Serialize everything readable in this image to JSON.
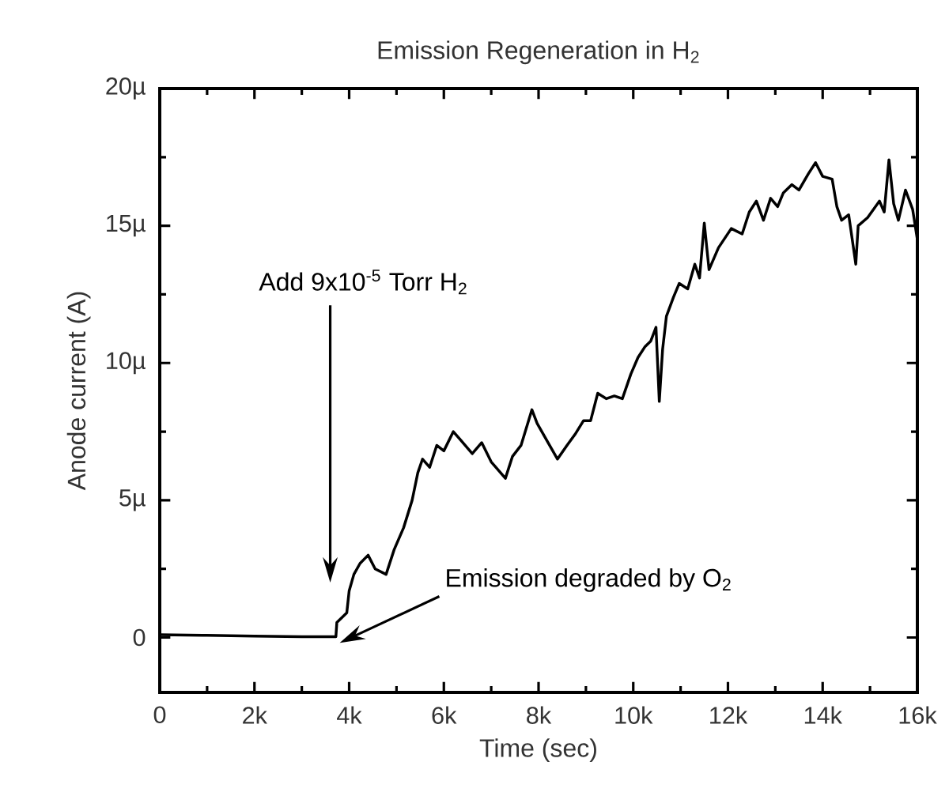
{
  "chart_data": {
    "type": "line",
    "title": "Emission Regeneration in H$_{2}$",
    "xlabel": "Time (sec)",
    "ylabel": "Anode current (A)",
    "xlim": [
      0,
      16000
    ],
    "ylim": [
      -2,
      20
    ],
    "xticks": [
      0,
      {
        "value": 2000,
        "label": "2k"
      },
      {
        "value": 4000,
        "label": "4k"
      },
      {
        "value": 6000,
        "label": "6k"
      },
      {
        "value": 8000,
        "label": "8k"
      },
      {
        "value": 10000,
        "label": "10k"
      },
      {
        "value": 12000,
        "label": "12k"
      },
      {
        "value": 14000,
        "label": "14k"
      },
      {
        "value": 16000,
        "label": "16k"
      }
    ],
    "yticks": [
      0,
      {
        "value": 5,
        "label": "5µ"
      },
      {
        "value": 10,
        "label": "10µ"
      },
      {
        "value": 15,
        "label": "15µ"
      },
      {
        "value": 20,
        "label": "20µ"
      }
    ],
    "marker": "none",
    "line_style": "solid",
    "annotations": [
      "Add 9x10$^{-5}$ Torr H$_{2}$",
      "Emission degraded by O$_{2}$"
    ],
    "series": [
      {
        "color": "#000000",
        "x": [
          0,
          1000,
          2000,
          3000,
          3720,
          3740,
          3950,
          4000,
          4100,
          4230,
          4400,
          4550,
          4780,
          4950,
          5150,
          5330,
          5450,
          5550,
          5700,
          5850,
          6000,
          6200,
          6350,
          6600,
          6800,
          7000,
          7300,
          7450,
          7630,
          7860,
          7970,
          8200,
          8400,
          8600,
          8770,
          8950,
          9100,
          9250,
          9430,
          9600,
          9770,
          9950,
          10100,
          10250,
          10370,
          10480,
          10550,
          10620,
          10700,
          10850,
          10970,
          11150,
          11300,
          11400,
          11500,
          11600,
          11800,
          12070,
          12300,
          12450,
          12600,
          12750,
          12900,
          13050,
          13170,
          13350,
          13500,
          13700,
          13850,
          14000,
          14200,
          14300,
          14400,
          14550,
          14700,
          14750,
          14950,
          15200,
          15300,
          15400,
          15500,
          15600,
          15750,
          15900,
          16000
        ],
        "values": [
          0.1,
          0.08,
          0.05,
          0.03,
          0.03,
          0.55,
          0.9,
          1.7,
          2.3,
          2.7,
          3.0,
          2.5,
          2.3,
          3.2,
          4.0,
          5.0,
          6.0,
          6.5,
          6.2,
          7.0,
          6.8,
          7.5,
          7.2,
          6.7,
          7.1,
          6.4,
          5.8,
          6.6,
          7.0,
          8.3,
          7.8,
          7.1,
          6.5,
          7.0,
          7.4,
          7.9,
          7.9,
          8.9,
          8.7,
          8.8,
          8.7,
          9.6,
          10.2,
          10.6,
          10.8,
          11.3,
          8.6,
          10.5,
          11.7,
          12.4,
          12.9,
          12.7,
          13.6,
          13.1,
          15.1,
          13.4,
          14.2,
          14.9,
          14.7,
          15.5,
          15.9,
          15.2,
          16.0,
          15.7,
          16.2,
          16.5,
          16.3,
          16.9,
          17.3,
          16.8,
          16.7,
          15.7,
          15.2,
          15.4,
          13.6,
          15.0,
          15.3,
          15.9,
          15.5,
          17.4,
          15.8,
          15.2,
          16.3,
          15.6,
          14.5
        ]
      }
    ]
  }
}
